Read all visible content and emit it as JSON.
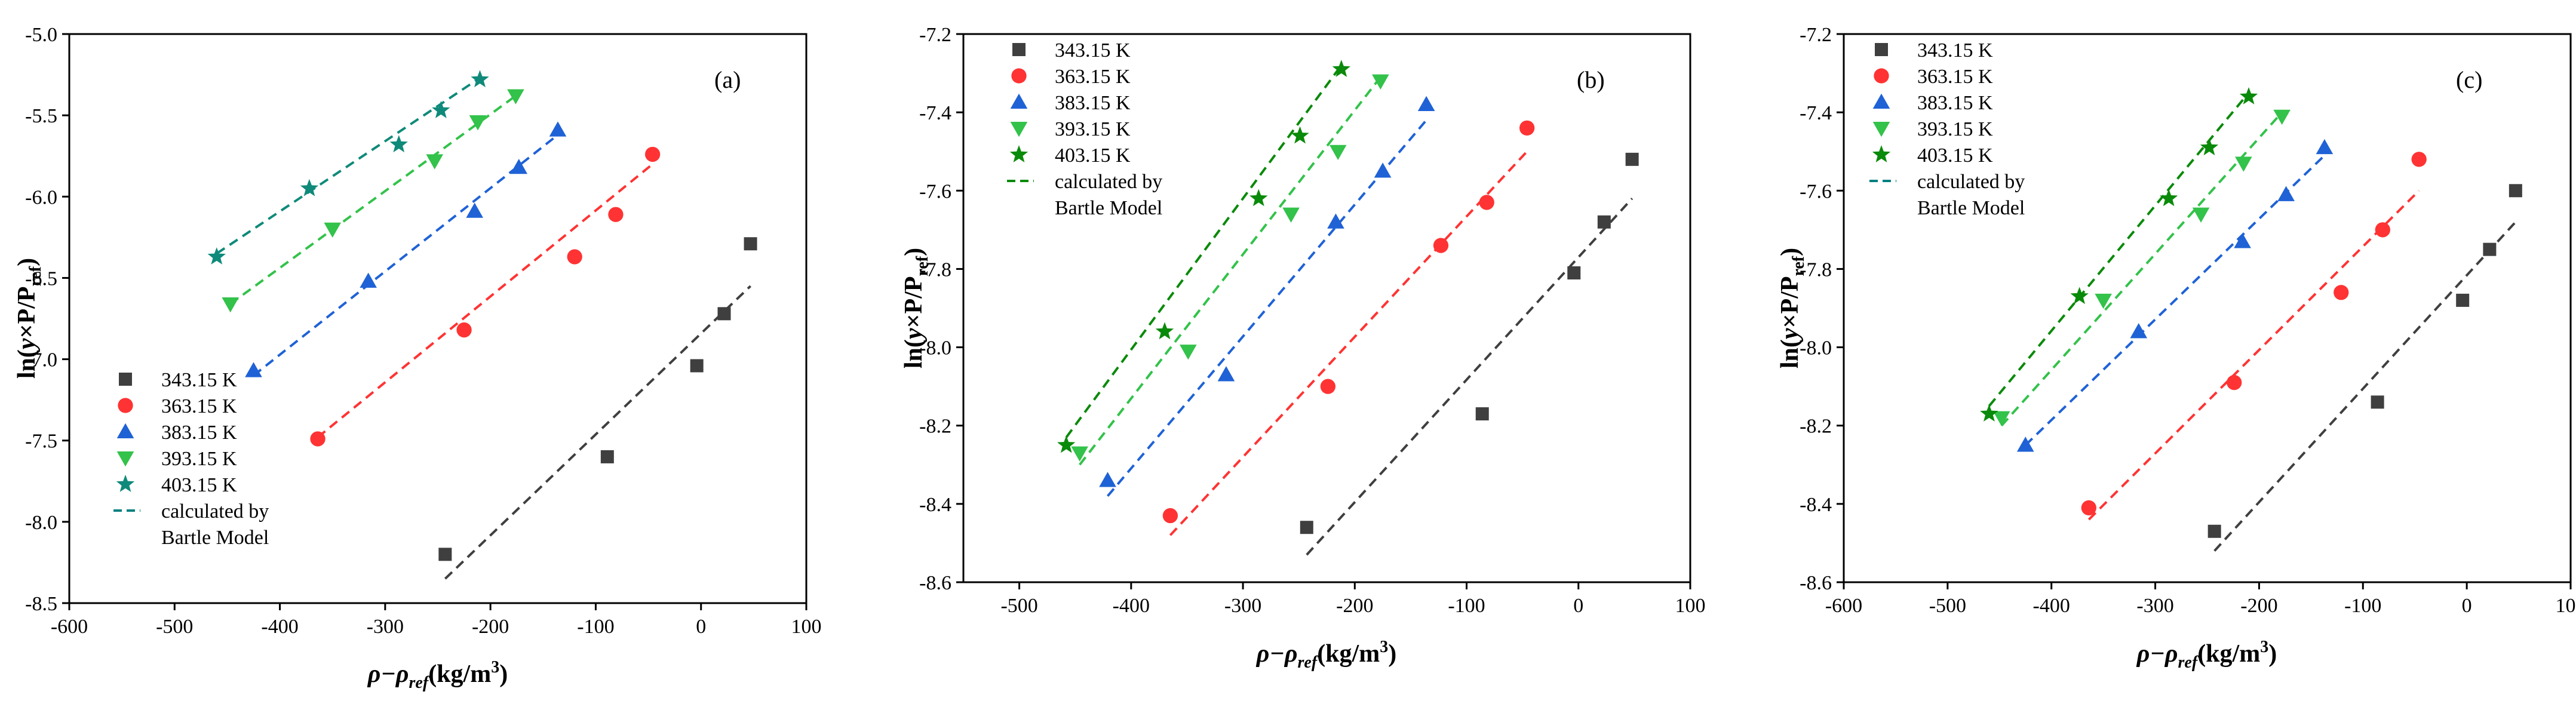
{
  "chart_data": [
    {
      "type": "scatter",
      "panel_label": "(a)",
      "xlabel": "ρ−ρ",
      "xlabel_sub": "ref",
      "xlabel_unit": "(kg/m",
      "xlabel_sup": "3",
      "xlabel_close": ")",
      "ylabel_pre": "ln(",
      "ylabel_y": "y",
      "ylabel_mid": "×P/P",
      "ylabel_sub": "ref",
      "ylabel_close": ")",
      "xlim": [
        -600,
        100
      ],
      "ylim": [
        -8.5,
        -5.0
      ],
      "xticks": [
        -600,
        -500,
        -400,
        -300,
        -200,
        -100,
        0,
        100
      ],
      "yticks": [
        -8.5,
        -8.0,
        -7.5,
        -7.0,
        -6.5,
        -6.0,
        -5.5,
        -5.0
      ],
      "ytick_labels": [
        "-8.5",
        "-8.0",
        "-7.5",
        "-7.0",
        "-6.5",
        "-6.0",
        "-5.5",
        "-5.0"
      ],
      "legend_position": "bottom-left",
      "fit_label_line1": "calculated by",
      "fit_label_line2": "Bartle Model",
      "fit_color": "#008080",
      "series": [
        {
          "name": "343.15 K",
          "marker": "square",
          "color": "#3f3f3f",
          "x": [
            -243,
            -89,
            -4,
            22,
            47
          ],
          "y": [
            -8.2,
            -7.6,
            -7.04,
            -6.72,
            -6.29
          ],
          "fit_x": [
            -243,
            47
          ],
          "fit_y": [
            -8.35,
            -6.55
          ]
        },
        {
          "name": "363.15 K",
          "marker": "circle",
          "color": "#ff3333",
          "x": [
            -364,
            -225,
            -120,
            -81,
            -46
          ],
          "y": [
            -7.49,
            -6.82,
            -6.37,
            -6.11,
            -5.74
          ],
          "fit_x": [
            -364,
            -46
          ],
          "fit_y": [
            -7.48,
            -5.8
          ]
        },
        {
          "name": "383.15 K",
          "marker": "triangle-up",
          "color": "#1f62d6",
          "x": [
            -425,
            -316,
            -215,
            -173,
            -136
          ],
          "y": [
            -7.07,
            -6.52,
            -6.09,
            -5.82,
            -5.59
          ],
          "fit_x": [
            -425,
            -136
          ],
          "fit_y": [
            -7.1,
            -5.62
          ]
        },
        {
          "name": "393.15 K",
          "marker": "triangle-down",
          "color": "#33c24a",
          "x": [
            -447,
            -350,
            -253,
            -212,
            -176
          ],
          "y": [
            -6.66,
            -6.2,
            -5.78,
            -5.54,
            -5.38
          ],
          "fit_x": [
            -447,
            -176
          ],
          "fit_y": [
            -6.66,
            -5.38
          ]
        },
        {
          "name": "403.15 K",
          "marker": "star",
          "color": "#0f8a7a",
          "x": [
            -460,
            -372,
            -287,
            -247,
            -210
          ],
          "y": [
            -6.37,
            -5.95,
            -5.68,
            -5.47,
            -5.28
          ],
          "fit_x": [
            -460,
            -210
          ],
          "fit_y": [
            -6.35,
            -5.27
          ]
        }
      ]
    },
    {
      "type": "scatter",
      "panel_label": "(b)",
      "xlabel": "ρ−ρ",
      "xlabel_sub": "ref",
      "xlabel_unit": "(kg/m",
      "xlabel_sup": "3",
      "xlabel_close": ")",
      "ylabel_pre": "ln(",
      "ylabel_y": "y",
      "ylabel_mid": "×P/P",
      "ylabel_sub": "ref",
      "ylabel_close": ")",
      "xlim": [
        -550,
        100
      ],
      "ylim": [
        -8.6,
        -7.2
      ],
      "xticks": [
        -500,
        -400,
        -300,
        -200,
        -100,
        0,
        100
      ],
      "yticks": [
        -8.6,
        -8.4,
        -8.2,
        -8.0,
        -7.8,
        -7.6,
        -7.4,
        -7.2
      ],
      "ytick_labels": [
        "-8.6",
        "-8.4",
        "-8.2",
        "-8.0",
        "-7.8",
        "-7.6",
        "-7.4",
        "-7.2"
      ],
      "legend_position": "top-left",
      "fit_label_line1": "calculated by",
      "fit_label_line2": "Bartle Model",
      "fit_color": "#0a8a0a",
      "series": [
        {
          "name": "343.15 K",
          "marker": "square",
          "color": "#3f3f3f",
          "x": [
            -243,
            -86,
            -4,
            23,
            48
          ],
          "y": [
            -8.46,
            -8.17,
            -7.81,
            -7.68,
            -7.52
          ],
          "fit_x": [
            -243,
            48
          ],
          "fit_y": [
            -8.53,
            -7.62
          ]
        },
        {
          "name": "363.15 K",
          "marker": "circle",
          "color": "#ff3333",
          "x": [
            -365,
            -224,
            -123,
            -82,
            -46
          ],
          "y": [
            -8.43,
            -8.1,
            -7.74,
            -7.63,
            -7.44
          ],
          "fit_x": [
            -365,
            -46
          ],
          "fit_y": [
            -8.48,
            -7.5
          ]
        },
        {
          "name": "383.15 K",
          "marker": "triangle-up",
          "color": "#1f62d6",
          "x": [
            -421,
            -315,
            -217,
            -175,
            -136
          ],
          "y": [
            -8.34,
            -8.07,
            -7.68,
            -7.55,
            -7.38
          ],
          "fit_x": [
            -421,
            -136
          ],
          "fit_y": [
            -8.38,
            -7.42
          ]
        },
        {
          "name": "393.15 K",
          "marker": "triangle-down",
          "color": "#33c24a",
          "x": [
            -446,
            -349,
            -257,
            -215,
            -177
          ],
          "y": [
            -8.27,
            -8.01,
            -7.66,
            -7.5,
            -7.32
          ],
          "fit_x": [
            -446,
            -177
          ],
          "fit_y": [
            -8.3,
            -7.31
          ]
        },
        {
          "name": "403.15 K",
          "marker": "star",
          "color": "#0a8a0a",
          "x": [
            -458,
            -370,
            -286,
            -249,
            -212
          ],
          "y": [
            -8.25,
            -7.96,
            -7.62,
            -7.46,
            -7.29
          ],
          "fit_x": [
            -458,
            -212
          ],
          "fit_y": [
            -8.23,
            -7.28
          ]
        }
      ]
    },
    {
      "type": "scatter",
      "panel_label": "(c)",
      "xlabel": "ρ−ρ",
      "xlabel_sub": "ref",
      "xlabel_unit": "(kg/m",
      "xlabel_sup": "3",
      "xlabel_close": ")",
      "ylabel_pre": "ln(",
      "ylabel_y": "y",
      "ylabel_mid": "×P/P",
      "ylabel_sub": "ref",
      "ylabel_close": ")",
      "xlim": [
        -600,
        100
      ],
      "ylim": [
        -8.6,
        -7.2
      ],
      "xticks": [
        -600,
        -500,
        -400,
        -300,
        -200,
        -100,
        0,
        100
      ],
      "yticks": [
        -8.6,
        -8.4,
        -8.2,
        -8.0,
        -7.8,
        -7.6,
        -7.4,
        -7.2
      ],
      "ytick_labels": [
        "-8.6",
        "-8.4",
        "-8.2",
        "-8.0",
        "-7.8",
        "-7.6",
        "-7.4",
        "-7.2"
      ],
      "legend_position": "top-left",
      "fit_label_line1": "calculated by",
      "fit_label_line2": "Bartle Model",
      "fit_color": "#008080",
      "series": [
        {
          "name": "343.15 K",
          "marker": "square",
          "color": "#3f3f3f",
          "x": [
            -243,
            -86,
            -4,
            22,
            47
          ],
          "y": [
            -8.47,
            -8.14,
            -7.88,
            -7.75,
            -7.6
          ],
          "fit_x": [
            -243,
            47
          ],
          "fit_y": [
            -8.52,
            -7.68
          ]
        },
        {
          "name": "363.15 K",
          "marker": "circle",
          "color": "#ff3333",
          "x": [
            -364,
            -224,
            -121,
            -81,
            -46
          ],
          "y": [
            -8.41,
            -8.09,
            -7.86,
            -7.7,
            -7.52
          ],
          "fit_x": [
            -364,
            -46
          ],
          "fit_y": [
            -8.44,
            -7.6
          ]
        },
        {
          "name": "383.15 K",
          "marker": "triangle-up",
          "color": "#1f62d6",
          "x": [
            -425,
            -316,
            -216,
            -174,
            -137
          ],
          "y": [
            -8.25,
            -7.96,
            -7.73,
            -7.61,
            -7.49
          ],
          "fit_x": [
            -425,
            -137
          ],
          "fit_y": [
            -8.25,
            -7.51
          ]
        },
        {
          "name": "393.15 K",
          "marker": "triangle-down",
          "color": "#33c24a",
          "x": [
            -448,
            -350,
            -256,
            -215,
            -178
          ],
          "y": [
            -8.18,
            -7.88,
            -7.66,
            -7.53,
            -7.41
          ],
          "fit_x": [
            -448,
            -178
          ],
          "fit_y": [
            -8.2,
            -7.4
          ]
        },
        {
          "name": "403.15 K",
          "marker": "star",
          "color": "#0a8a0a",
          "x": [
            -460,
            -373,
            -287,
            -248,
            -210
          ],
          "y": [
            -8.17,
            -7.87,
            -7.62,
            -7.49,
            -7.36
          ],
          "fit_x": [
            -460,
            -210
          ],
          "fit_y": [
            -8.15,
            -7.35
          ]
        }
      ]
    }
  ]
}
